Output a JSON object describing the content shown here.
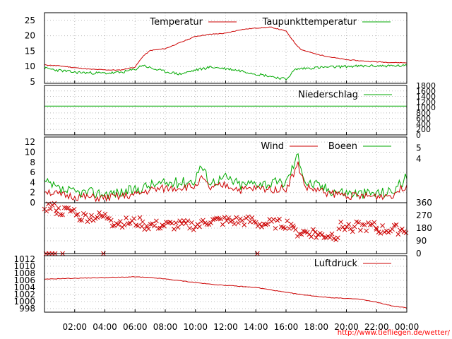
{
  "colors": {
    "temperature": "#cc0000",
    "dewpoint": "#00aa00",
    "precip": "#00aa00",
    "wind": "#cc0000",
    "gusts": "#00aa00",
    "direction": "#cc0000",
    "pressure": "#cc0000",
    "grid": "#bbbbbb",
    "url": "#ff0000"
  },
  "source_url": "http://www.tiefliegen.de/wetter/",
  "chart_data": [
    {
      "type": "line",
      "legend": [
        "Temperatur",
        "Taupunkttemperatur"
      ],
      "legend_placement": "top-right",
      "ylim": [
        4.5,
        27.5
      ],
      "y_ticks": [
        "5",
        "10",
        "15",
        "20",
        "25"
      ],
      "grid": true,
      "x_hours": [
        0,
        1,
        2,
        3,
        4,
        5,
        6,
        6.5,
        7,
        8,
        9,
        10,
        11,
        12,
        13,
        14,
        15,
        16,
        16.6,
        17,
        18,
        19,
        20,
        21,
        22,
        23,
        24
      ],
      "series": [
        {
          "name": "Temperatur",
          "values": [
            10.5,
            10.2,
            9.6,
            9.1,
            8.9,
            8.8,
            9.8,
            13.2,
            15.2,
            15.8,
            17.8,
            19.8,
            20.5,
            20.8,
            22,
            22.5,
            22.8,
            21.5,
            17.5,
            15.5,
            14,
            13,
            12.2,
            11.8,
            11.5,
            11.3,
            11.2
          ]
        },
        {
          "name": "Taupunkttemperatur",
          "values": [
            9.4,
            8.7,
            8.1,
            7.9,
            7.8,
            8,
            9,
            10.5,
            9.5,
            8.3,
            7.5,
            8.8,
            9.8,
            9.3,
            8.6,
            7.6,
            6.8,
            5.8,
            9,
            9.3,
            9.6,
            9.8,
            10,
            10.1,
            10.2,
            10.2,
            10.2
          ]
        }
      ]
    },
    {
      "type": "line",
      "legend": [
        "Niederschlag"
      ],
      "legend_placement": "top-right",
      "ylim": [
        0,
        1800
      ],
      "y_ticks": [
        "0",
        "200",
        "400",
        "600",
        "800",
        "1000",
        "1200",
        "1400",
        "1600",
        "1800"
      ],
      "grid": true,
      "x_hours": [
        0,
        24
      ],
      "series": [
        {
          "name": "Niederschlag",
          "values": [
            1050,
            1050
          ]
        }
      ]
    },
    {
      "type": "line",
      "legend": [
        "Wind",
        "Boeen"
      ],
      "legend_placement": "top-right",
      "ylim": [
        0,
        13
      ],
      "y_ticks": [
        "0",
        "2",
        "4",
        "6",
        "8",
        "10",
        "12"
      ],
      "y2_ticks": [
        "4",
        "5"
      ],
      "grid": true,
      "x_hours": [
        0,
        1,
        2,
        3,
        4,
        5,
        6,
        7,
        8,
        9,
        10,
        10.3,
        11,
        12,
        13,
        14,
        15,
        16,
        16.8,
        17.3,
        18,
        19,
        20,
        21,
        22,
        23,
        24
      ],
      "series": [
        {
          "name": "Wind",
          "values": [
            2.5,
            1.5,
            1.2,
            1,
            0.9,
            1.2,
            1.5,
            2.5,
            2.8,
            3,
            3.2,
            5,
            2.8,
            3.5,
            2.5,
            2.8,
            2.7,
            2.8,
            7.5,
            3,
            2.5,
            1.8,
            1.5,
            1.2,
            1.3,
            1.5,
            3.5
          ]
        },
        {
          "name": "Boeen",
          "values": [
            4,
            2.5,
            2,
            2,
            1.8,
            2,
            2.5,
            3.5,
            3.8,
            4,
            4.5,
            7.5,
            4,
            5,
            3.5,
            4,
            3.8,
            4,
            9.5,
            4,
            3.5,
            2.5,
            2,
            1.8,
            1.9,
            2.2,
            5
          ]
        }
      ]
    },
    {
      "type": "scatter",
      "ylim": [
        0,
        360
      ],
      "y2_ticks": [
        "0",
        "90",
        "180",
        "270",
        "360"
      ],
      "grid": true,
      "x_range_hours": [
        0,
        24
      ],
      "direction_bands": [
        {
          "from": 0,
          "to": 0.8,
          "level": 330
        },
        {
          "from": 0.8,
          "to": 2.2,
          "level": 300
        },
        {
          "from": 2.2,
          "to": 4.5,
          "level": 260
        },
        {
          "from": 4.5,
          "to": 6.5,
          "level": 220
        },
        {
          "from": 6.5,
          "to": 10.5,
          "level": 200
        },
        {
          "from": 10.5,
          "to": 14,
          "level": 230
        },
        {
          "from": 14,
          "to": 16.5,
          "level": 210
        },
        {
          "from": 16.5,
          "to": 18,
          "level": 150
        },
        {
          "from": 18,
          "to": 19.5,
          "level": 130
        },
        {
          "from": 19.5,
          "to": 22,
          "level": 190
        },
        {
          "from": 22,
          "to": 24,
          "level": 170
        }
      ],
      "calm_markers_hours": [
        0.1,
        0.3,
        0.5,
        0.7,
        1.2,
        3.9,
        14.1
      ]
    },
    {
      "type": "line",
      "legend": [
        "Luftdruck"
      ],
      "legend_placement": "top-right",
      "ylim": [
        997,
        1013
      ],
      "y_ticks": [
        "998",
        "1000",
        "1002",
        "1004",
        "1006",
        "1008",
        "1010",
        "1012"
      ],
      "grid": true,
      "x_hours": [
        0,
        1,
        2,
        3,
        4,
        5,
        6,
        7,
        8,
        9,
        10,
        11,
        12,
        13,
        14,
        15,
        16,
        17,
        18,
        19,
        20,
        21,
        22,
        23,
        24
      ],
      "series": [
        {
          "name": "Luftdruck",
          "values": [
            1006.3,
            1006.5,
            1006.6,
            1006.7,
            1006.8,
            1006.9,
            1007,
            1006.8,
            1006.4,
            1005.9,
            1005.4,
            1004.9,
            1004.6,
            1004.3,
            1004,
            1003.3,
            1002.6,
            1002,
            1001.5,
            1001.1,
            1000.9,
            1000.6,
            999.8,
            998.8,
            998.2
          ]
        }
      ]
    }
  ],
  "x_axis": {
    "range_hours": [
      0,
      24
    ],
    "tick_labels": [
      "02:00",
      "04:00",
      "06:00",
      "08:00",
      "10:00",
      "12:00",
      "14:00",
      "16:00",
      "18:00",
      "20:00",
      "22:00",
      "00:00"
    ]
  }
}
